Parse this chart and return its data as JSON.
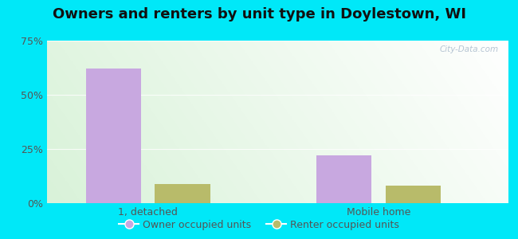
{
  "title": "Owners and renters by unit type in Doylestown, WI",
  "categories": [
    "1, detached",
    "Mobile home"
  ],
  "owner_values": [
    62,
    22
  ],
  "renter_values": [
    9,
    8
  ],
  "owner_color": "#c8a8e0",
  "renter_color": "#b8bb6a",
  "owner_label": "Owner occupied units",
  "renter_label": "Renter occupied units",
  "ylim": [
    0,
    75
  ],
  "yticks": [
    0,
    25,
    50,
    75
  ],
  "ytick_labels": [
    "0%",
    "25%",
    "50%",
    "75%"
  ],
  "background_outer": "#00e8f8",
  "title_fontsize": 13,
  "tick_fontsize": 9,
  "legend_fontsize": 9,
  "watermark": "City-Data.com"
}
